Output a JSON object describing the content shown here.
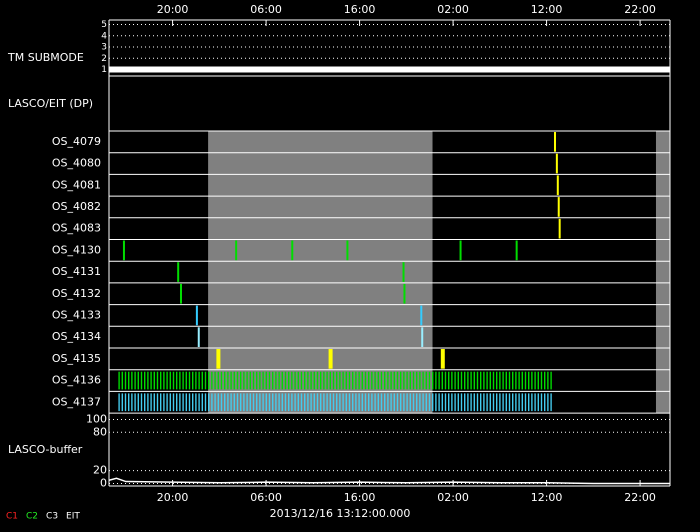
{
  "chart_data": {
    "type": "timeline",
    "xlim": [
      13.2,
      73.2
    ],
    "xticks": [
      {
        "value": 20,
        "label": "20:00"
      },
      {
        "value": 30,
        "label": "06:00"
      },
      {
        "value": 40,
        "label": "16:00"
      },
      {
        "value": 50,
        "label": "02:00"
      },
      {
        "value": 60,
        "label": "12:00"
      },
      {
        "value": 70,
        "label": "22:00"
      }
    ],
    "x_label": "2013/12/16 13:12:00.000",
    "shaded": [
      [
        23.8,
        47.8
      ],
      [
        71.7,
        73.2
      ]
    ],
    "submode": {
      "name": "TM SUBMODE",
      "ylim": [
        0.6,
        5.4
      ],
      "yticks": [
        1,
        2,
        3,
        4,
        5
      ],
      "color": "#ffffff",
      "spans": [
        {
          "start": 13.2,
          "end": 73.2,
          "value": 1
        }
      ]
    },
    "lasco_eit": {
      "name": "LASCO/EIT (DP)"
    },
    "rows": [
      {
        "name": "OS_4079",
        "color": "#ffff00",
        "events": [
          60.9
        ]
      },
      {
        "name": "OS_4080",
        "color": "#ffff00",
        "events": [
          61.1
        ]
      },
      {
        "name": "OS_4081",
        "color": "#ffff00",
        "events": [
          61.2
        ]
      },
      {
        "name": "OS_4082",
        "color": "#ffff00",
        "events": [
          61.3
        ]
      },
      {
        "name": "OS_4083",
        "color": "#ffff00",
        "events": [
          61.4
        ]
      },
      {
        "name": "OS_4130",
        "color": "#00dd00",
        "events": [
          14.8,
          26.8,
          32.8,
          38.7,
          50.8,
          56.8
        ]
      },
      {
        "name": "OS_4131",
        "color": "#00dd00",
        "events": [
          20.6,
          44.7
        ]
      },
      {
        "name": "OS_4132",
        "color": "#00dd00",
        "events": [
          20.9,
          44.8
        ]
      },
      {
        "name": "OS_4133",
        "color": "#33ccff",
        "events": [
          22.6,
          46.6
        ]
      },
      {
        "name": "OS_4134",
        "color": "#99eeff",
        "events": [
          22.8,
          46.7
        ]
      },
      {
        "name": "OS_4135",
        "color": "#ffff00",
        "events": [
          24.9,
          36.9,
          48.9
        ]
      },
      {
        "name": "OS_4136",
        "color": "#00dd00",
        "spans": [
          [
            14.1,
            60.6
          ]
        ]
      },
      {
        "name": "OS_4137",
        "color": "#44ccee",
        "spans": [
          [
            14.1,
            60.6
          ]
        ]
      }
    ],
    "buffer": {
      "name": "LASCO-buffer",
      "ylim": [
        -4,
        110
      ],
      "yticks": [
        0,
        20,
        80,
        100
      ],
      "color": "#ffffff",
      "x": [
        13.2,
        14,
        15,
        20,
        25,
        30,
        35,
        40,
        45,
        50,
        55,
        60,
        65,
        70,
        73.2
      ],
      "values": [
        5,
        8,
        3,
        2,
        1,
        2,
        1,
        2,
        1,
        2,
        1,
        1,
        0,
        0,
        0
      ]
    },
    "legend": [
      {
        "name": "C1",
        "color": "#ff2222"
      },
      {
        "name": "C2",
        "color": "#22ee22"
      },
      {
        "name": "C3",
        "color": "#ffffff"
      },
      {
        "name": "EIT",
        "color": "#ffffff"
      }
    ]
  }
}
